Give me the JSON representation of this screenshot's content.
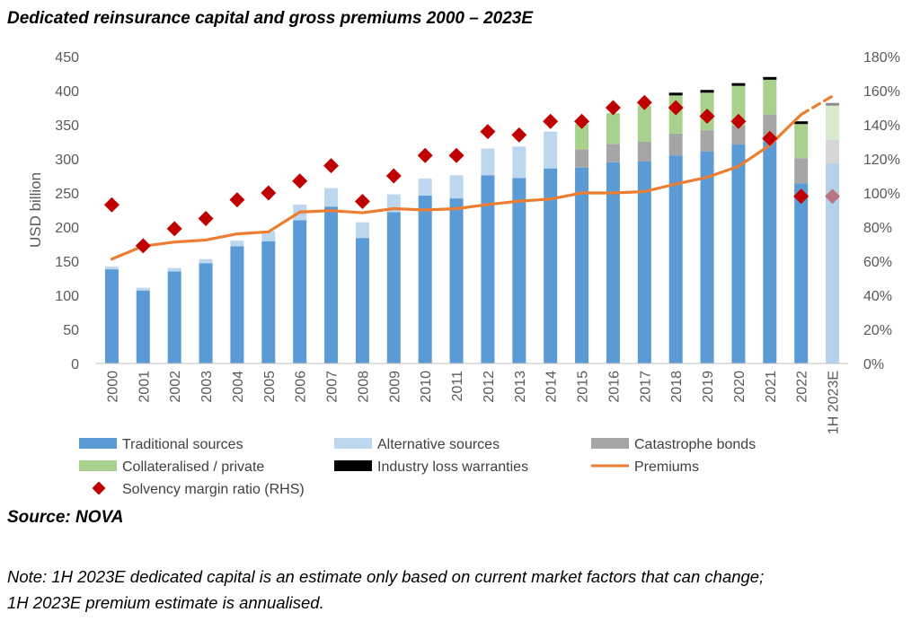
{
  "title": "Dedicated reinsurance capital and gross premiums 2000 – 2023E",
  "source": "Source: NOVA",
  "note_line1": "Note: 1H 2023E dedicated capital is an estimate only based on current market factors that can change;",
  "note_line2": "1H 2023E premium estimate is annualised.",
  "colors": {
    "traditional": "#5b9bd5",
    "alternative": "#bdd7ee",
    "catbonds": "#a5a5a5",
    "collateralised": "#a9d18e",
    "ilw": "#000000",
    "premiums": "#ed7d31",
    "solvency": "#c00000",
    "grid": "#d9d9d9",
    "axis_text": "#595959"
  },
  "chart_data": {
    "type": "bar",
    "stacked": true,
    "title": "Dedicated reinsurance capital and gross premiums 2000 – 2023E",
    "categories": [
      "2000",
      "2001",
      "2002",
      "2003",
      "2004",
      "2005",
      "2006",
      "2007",
      "2008",
      "2009",
      "2010",
      "2011",
      "2012",
      "2013",
      "2014",
      "2015",
      "2016",
      "2017",
      "2018",
      "2019",
      "2020",
      "2021",
      "2022",
      "1H 2023E"
    ],
    "ylabel": "USD billion",
    "ylim": [
      0,
      450
    ],
    "yticks": [
      "0",
      "50",
      "100",
      "150",
      "200",
      "250",
      "300",
      "350",
      "400",
      "450"
    ],
    "y2lim": [
      0,
      180
    ],
    "y2ticks": [
      "0%",
      "20%",
      "40%",
      "60%",
      "80%",
      "100%",
      "120%",
      "140%",
      "160%",
      "180%"
    ],
    "estimate_category": "1H 2023E",
    "series": [
      {
        "name": "Traditional sources",
        "kind": "bar",
        "axis": "left",
        "values": [
          138,
          107,
          135,
          147,
          172,
          179,
          210,
          230,
          184,
          222,
          246,
          242,
          276,
          272,
          286,
          287,
          295,
          296,
          305,
          311,
          321,
          325,
          264,
          293
        ]
      },
      {
        "name": "Alternative sources",
        "kind": "bar",
        "axis": "left",
        "values": [
          4,
          4,
          5,
          6,
          8,
          15,
          23,
          27,
          23,
          26,
          25,
          34,
          39,
          46,
          54,
          0,
          0,
          0,
          0,
          0,
          0,
          0,
          0,
          0
        ]
      },
      {
        "name": "Catastrophe bonds",
        "kind": "bar",
        "axis": "left",
        "values": [
          0,
          0,
          0,
          0,
          0,
          0,
          0,
          0,
          0,
          0,
          0,
          0,
          0,
          0,
          0,
          27,
          27,
          29,
          32,
          31,
          28,
          40,
          37,
          35
        ]
      },
      {
        "name": "Collateralised / private",
        "kind": "bar",
        "axis": "left",
        "values": [
          0,
          0,
          0,
          0,
          0,
          0,
          0,
          0,
          0,
          0,
          0,
          0,
          0,
          0,
          0,
          37,
          45,
          53,
          56,
          55,
          58,
          51,
          50,
          50
        ]
      },
      {
        "name": "Industry loss warranties",
        "kind": "bar",
        "axis": "left",
        "values": [
          0,
          0,
          0,
          0,
          0,
          0,
          0,
          0,
          0,
          0,
          0,
          0,
          0,
          0,
          0,
          0,
          0,
          0,
          4,
          4,
          4,
          4,
          4,
          4
        ]
      },
      {
        "name": "Premiums",
        "kind": "line",
        "axis": "left",
        "values": [
          153,
          172,
          178,
          181,
          190,
          193,
          222,
          224,
          221,
          227,
          225,
          227,
          233,
          238,
          241,
          250,
          250,
          252,
          263,
          273,
          289,
          320,
          365,
          392
        ]
      },
      {
        "name": "Solvency margin ratio (RHS)",
        "kind": "marker",
        "axis": "right",
        "values": [
          93,
          69,
          79,
          85,
          96,
          100,
          107,
          116,
          95,
          110,
          122,
          122,
          136,
          134,
          142,
          142,
          150,
          153,
          150,
          145,
          142,
          132,
          98,
          98
        ]
      }
    ],
    "legend": [
      {
        "label": "Traditional sources",
        "key": "traditional",
        "type": "box"
      },
      {
        "label": "Alternative sources",
        "key": "alternative",
        "type": "box"
      },
      {
        "label": "Catastrophe bonds",
        "key": "catbonds",
        "type": "box"
      },
      {
        "label": "Collateralised / private",
        "key": "collateralised",
        "type": "box"
      },
      {
        "label": "Industry loss warranties",
        "key": "ilw",
        "type": "box"
      },
      {
        "label": "Premiums",
        "key": "premiums",
        "type": "line"
      },
      {
        "label": "Solvency margin ratio (RHS)",
        "key": "solvency",
        "type": "diamond"
      }
    ],
    "legend_position": "bottom"
  }
}
